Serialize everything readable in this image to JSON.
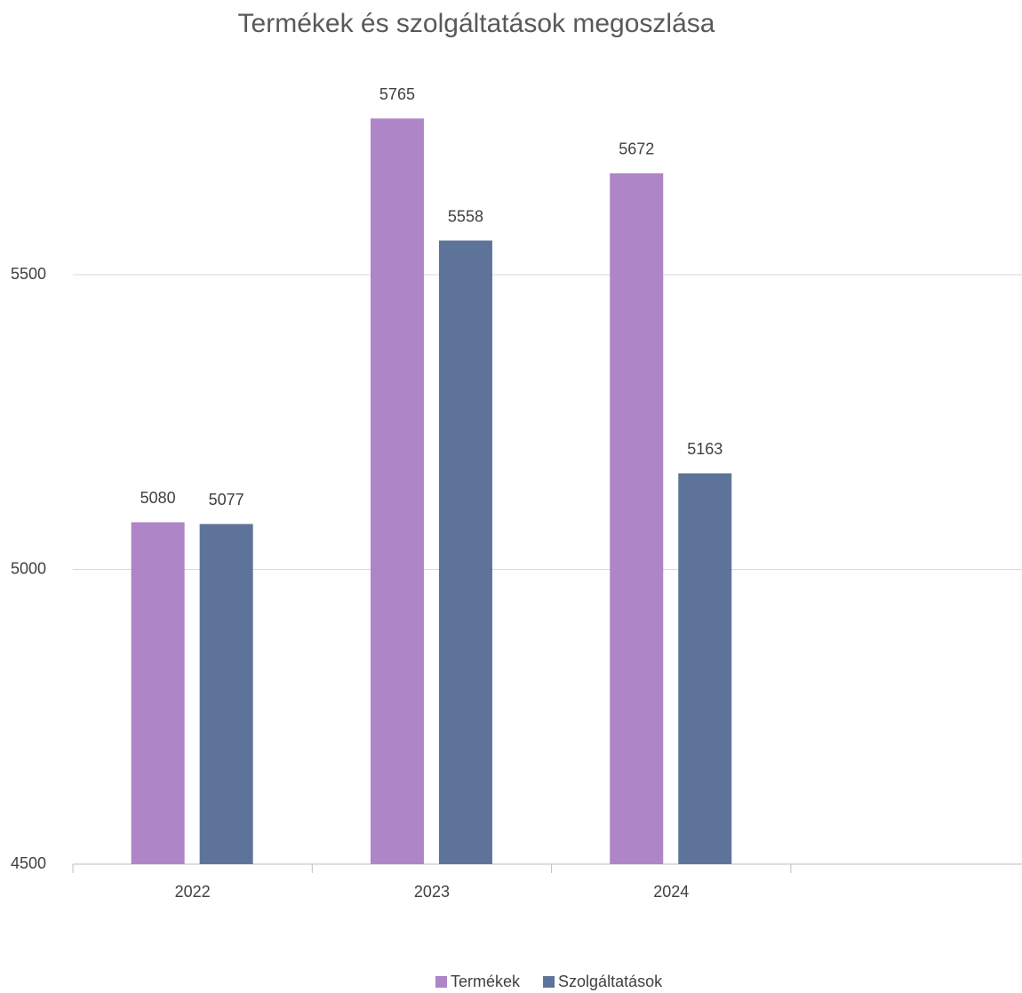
{
  "chart_data": {
    "type": "bar",
    "title": "Termékek és szolgáltatások megoszlása",
    "categories": [
      "2022",
      "2023",
      "2024",
      null
    ],
    "series": [
      {
        "name": "Termékek",
        "color": "#ae85c6",
        "values": [
          5080,
          5765,
          5672,
          null
        ]
      },
      {
        "name": "Szolgáltatások",
        "color": "#5e7399",
        "values": [
          5077,
          5558,
          5163,
          null
        ]
      }
    ],
    "ylim": [
      4500,
      6000
    ],
    "yticks": [
      4500,
      5000,
      5500
    ],
    "grid": true,
    "legend": "bottom"
  }
}
